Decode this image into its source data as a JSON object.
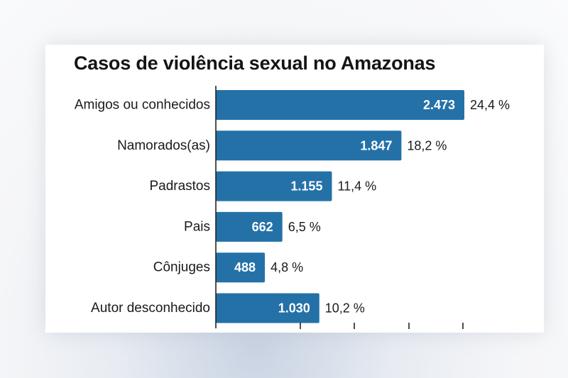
{
  "chart_data": {
    "type": "bar",
    "orientation": "horizontal",
    "title": "Casos de violência sexual no Amazonas",
    "categories": [
      "Amigos ou conhecidos",
      "Namorados(as)",
      "Padrastos",
      "Pais",
      "Cônjuges",
      "Autor desconhecido"
    ],
    "values": [
      2473,
      1847,
      1155,
      662,
      488,
      1030
    ],
    "value_labels": [
      "2.473",
      "1.847",
      "1.155",
      "662",
      "488",
      "1.030"
    ],
    "percent_labels": [
      "24,4 %",
      "18,2 %",
      "11,4 %",
      "6,5 %",
      "4,8 %",
      "10,2 %"
    ],
    "xlim": [
      0,
      2500
    ],
    "bar_color": "#2471a8",
    "grid": false
  }
}
